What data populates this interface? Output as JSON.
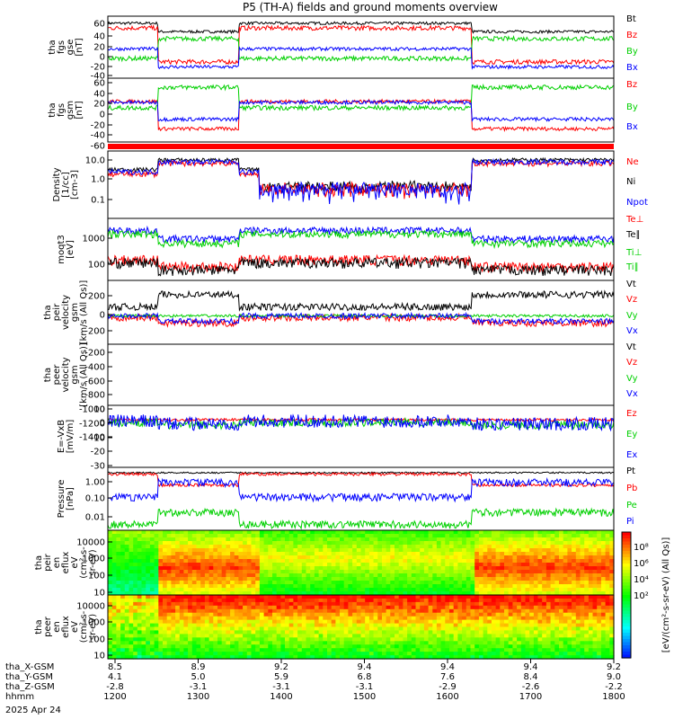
{
  "title": "P5 (TH-A) fields and ground moments overview",
  "date_label": "2025 Apr 24",
  "colors": {
    "black": "#000000",
    "red": "#ff0000",
    "green": "#00d000",
    "blue": "#0000ff"
  },
  "chart_data": [
    {
      "type": "line",
      "panel": "fgs_gse",
      "ylabel": [
        "tha",
        "fgs",
        "gse",
        "[nT]"
      ],
      "yticks": [
        "60",
        "40",
        "20",
        "0",
        "-20",
        "-40"
      ],
      "ylim": [
        -40,
        70
      ],
      "legend": [
        {
          "name": "Bt",
          "color": "black"
        },
        {
          "name": "Bz",
          "color": "red"
        },
        {
          "name": "By",
          "color": "green"
        },
        {
          "name": "Bx",
          "color": "blue"
        }
      ]
    },
    {
      "type": "line",
      "panel": "fgs_gsm",
      "ylabel": [
        "tha",
        "fgs",
        "gsm",
        "[nT]"
      ],
      "yticks": [
        "60",
        "40",
        "20",
        "0",
        "-20",
        "-40",
        "-60"
      ],
      "ylim": [
        -75,
        65
      ],
      "legend": [
        {
          "name": "Bz",
          "color": "red"
        },
        {
          "name": "By",
          "color": "green"
        },
        {
          "name": "Bx",
          "color": "blue"
        }
      ]
    },
    {
      "type": "bar",
      "panel": "mode_bar",
      "color": "red"
    },
    {
      "type": "line",
      "panel": "density",
      "scale": "log",
      "ylabel": [
        "Density",
        "[1/cc]",
        "[cm-3]"
      ],
      "yticks": [
        "10.0",
        "1.0",
        "0.1"
      ],
      "ylim": [
        0.02,
        20
      ],
      "legend": [
        {
          "name": "Ne",
          "color": "red"
        },
        {
          "name": "Ni",
          "color": "black"
        },
        {
          "name": "Npot",
          "color": "blue"
        }
      ]
    },
    {
      "type": "line",
      "panel": "temperature",
      "scale": "log",
      "ylabel": [
        "moqt3",
        "[eV]"
      ],
      "yticks": [
        "1000",
        "100"
      ],
      "ylim": [
        30,
        3000
      ],
      "legend": [
        {
          "name": "Te⊥",
          "color": "red"
        },
        {
          "name": "Te∥",
          "color": "black"
        },
        {
          "name": "Ti⊥",
          "color": "green"
        },
        {
          "name": "Ti∥",
          "color": "green"
        }
      ]
    },
    {
      "type": "line",
      "panel": "peir_velocity",
      "ylabel": [
        "tha",
        "peir",
        "velocity",
        "gsm",
        "[km/s (All Qs)]"
      ],
      "yticks": [
        "200",
        "0",
        "-200"
      ],
      "ylim": [
        -320,
        400
      ],
      "legend": [
        {
          "name": "Vt",
          "color": "black"
        },
        {
          "name": "Vz",
          "color": "red"
        },
        {
          "name": "Vy",
          "color": "green"
        },
        {
          "name": "Vx",
          "color": "blue"
        }
      ]
    },
    {
      "type": "line",
      "panel": "peer_velocity",
      "ylabel": [
        "tha",
        "peer",
        "velocity",
        "gsm",
        "[km/s (All Qs)]"
      ],
      "yticks": [
        "-200",
        "-400",
        "-600",
        "-800",
        "-1000",
        "-1200",
        "-1400"
      ],
      "ylim": [
        -1500,
        0
      ],
      "legend": [
        {
          "name": "Vt",
          "color": "black"
        },
        {
          "name": "Vz",
          "color": "red"
        },
        {
          "name": "Vy",
          "color": "green"
        },
        {
          "name": "Vx",
          "color": "blue"
        }
      ]
    },
    {
      "type": "line",
      "panel": "efield",
      "ylabel": [
        "E=-VxB",
        "[mV/m]"
      ],
      "yticks": [
        "10",
        "0",
        "-10",
        "-20",
        "-30"
      ],
      "ylim": [
        -35,
        12
      ],
      "legend": [
        {
          "name": "Ez",
          "color": "red"
        },
        {
          "name": "Ey",
          "color": "green"
        },
        {
          "name": "Ex",
          "color": "blue"
        }
      ]
    },
    {
      "type": "line",
      "panel": "pressure",
      "scale": "log",
      "ylabel": [
        "Pressure",
        "[nPa]"
      ],
      "yticks": [
        "1.00",
        "0.10",
        "0.01"
      ],
      "ylim": [
        0.002,
        2
      ],
      "legend": [
        {
          "name": "Pt",
          "color": "black"
        },
        {
          "name": "Pb",
          "color": "red"
        },
        {
          "name": "Pe",
          "color": "green"
        },
        {
          "name": "Pi",
          "color": "blue"
        }
      ]
    },
    {
      "type": "heatmap",
      "panel": "peir_spec",
      "scale": "log",
      "ylabel": [
        "tha",
        "peir",
        "en",
        "eflux",
        "eV",
        "(cm²-s-",
        "sr-eV)"
      ],
      "yticks": [
        "10000",
        "1000",
        "100",
        "10"
      ],
      "ylim": [
        5,
        30000
      ]
    },
    {
      "type": "heatmap",
      "panel": "peer_spec",
      "scale": "log",
      "ylabel": [
        "tha",
        "peer",
        "en",
        "eflux",
        "eV",
        "(cm²-s-",
        "sr-eV)"
      ],
      "yticks": [
        "10000",
        "1000",
        "100",
        "10"
      ],
      "ylim": [
        5,
        30000
      ]
    }
  ],
  "colorbar": {
    "ticks": [
      "10⁸",
      "10⁶",
      "10⁴",
      "10²"
    ],
    "label": "[eV/(cm²-s-sr-eV) (All Qs)]"
  },
  "xaxis": {
    "row_labels": [
      "tha_X-GSM",
      "tha_Y-GSM",
      "tha_Z-GSM",
      "hhmm"
    ],
    "ticks": [
      {
        "x": "8.5",
        "y": "4.1",
        "z": "-2.8",
        "t": "1200"
      },
      {
        "x": "8.9",
        "y": "5.0",
        "z": "-3.1",
        "t": "1300"
      },
      {
        "x": "9.2",
        "y": "5.9",
        "z": "-3.1",
        "t": "1400"
      },
      {
        "x": "9.4",
        "y": "6.8",
        "z": "-3.1",
        "t": "1500"
      },
      {
        "x": "9.4",
        "y": "7.6",
        "z": "-2.9",
        "t": "1600"
      },
      {
        "x": "9.4",
        "y": "8.4",
        "z": "-2.6",
        "t": "1700"
      },
      {
        "x": "9.2",
        "y": "9.0",
        "z": "-2.2",
        "t": "1800"
      }
    ]
  }
}
